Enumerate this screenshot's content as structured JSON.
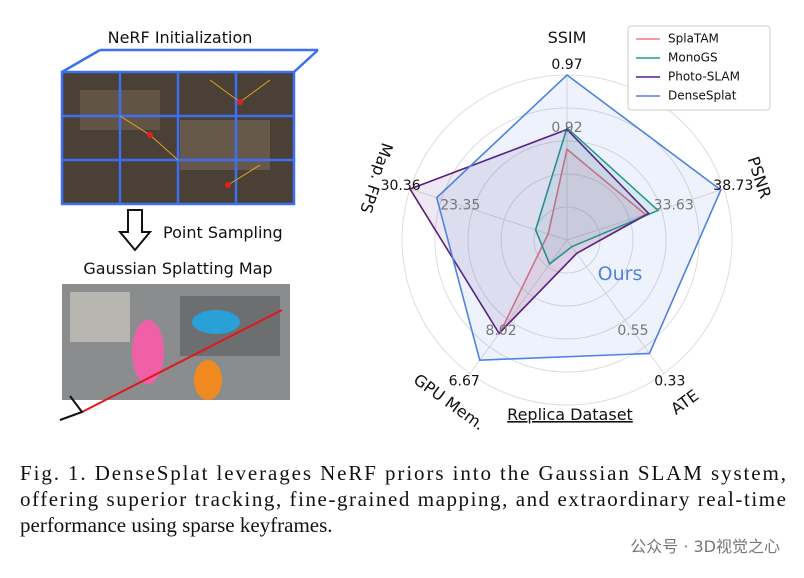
{
  "figure": {
    "top_title": "NeRF Initialization",
    "arrow_label": "Point Sampling",
    "bottom_title": "Gaussian Splatting Map"
  },
  "chart_data": {
    "type": "radar",
    "axes": [
      "SSIM",
      "PSNR",
      "ATE",
      "GPU Mem.",
      "Map. FPS"
    ],
    "axis_max_labels": [
      0.97,
      38.73,
      0.33,
      6.67,
      30.36
    ],
    "axis_mid_labels": [
      0.92,
      33.63,
      0.55,
      8.02,
      23.35
    ],
    "rlim": [
      0,
      1
    ],
    "rticks": [
      0.2,
      0.4,
      0.6,
      0.8,
      1.0
    ],
    "grid": true,
    "series": [
      {
        "name": "SplaTAM",
        "color": "#f07a7a",
        "values": [
          0.55,
          0.5,
          0.1,
          0.68,
          0.12
        ]
      },
      {
        "name": "MonoGS",
        "color": "#1f9e8c",
        "values": [
          0.68,
          0.58,
          0.05,
          0.18,
          0.2
        ]
      },
      {
        "name": "Photo-SLAM",
        "color": "#5b1b7b",
        "values": [
          0.67,
          0.52,
          0.1,
          0.7,
          1.0
        ]
      },
      {
        "name": "DenseSplat",
        "color": "#4f82e3",
        "values": [
          1.0,
          0.98,
          0.85,
          0.9,
          0.83
        ]
      }
    ],
    "annotation": "Ours",
    "xlabel": "Replica Dataset",
    "legend": "upper right"
  },
  "caption": [
    "Fig. 1.  DenseSplat leverages NeRF priors into the Gaussian SLAM system,",
    "offering superior tracking, fine-grained mapping, and extraordinary real-time",
    "performance using sparse keyframes."
  ],
  "watermark": "公众号 · 3D视觉之心"
}
